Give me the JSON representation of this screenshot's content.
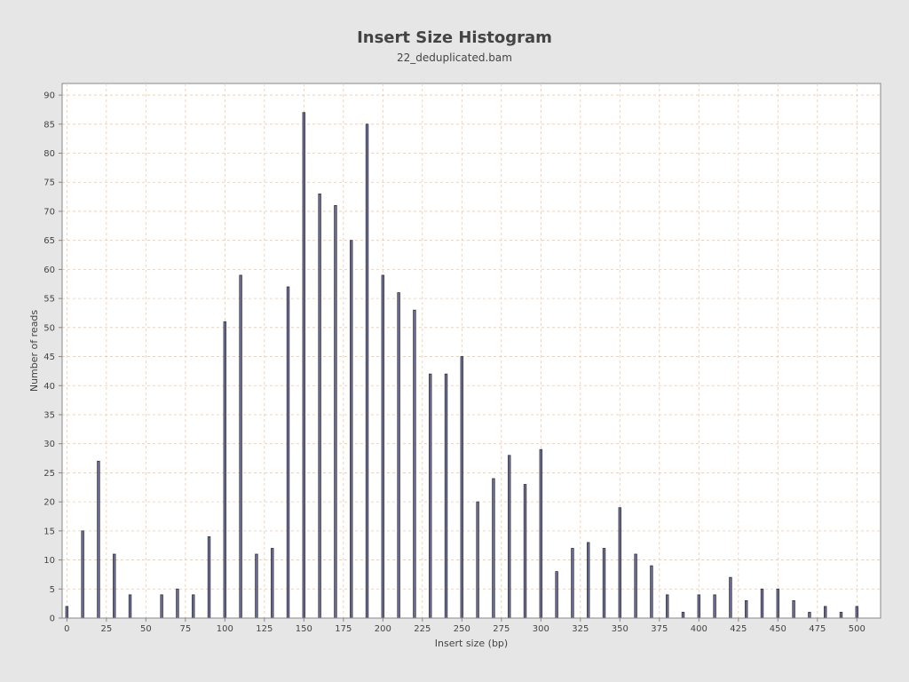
{
  "chart_data": {
    "type": "bar",
    "title": "Insert Size Histogram",
    "subtitle": "22_deduplicated.bam",
    "xlabel": "Insert size (bp)",
    "ylabel": "Number of reads",
    "xlim": [
      -3,
      515
    ],
    "ylim": [
      0,
      92
    ],
    "x_ticks": [
      0,
      25,
      50,
      75,
      100,
      125,
      150,
      175,
      200,
      225,
      250,
      275,
      300,
      325,
      350,
      375,
      400,
      425,
      450,
      475,
      500
    ],
    "y_ticks": [
      0,
      5,
      10,
      15,
      20,
      25,
      30,
      35,
      40,
      45,
      50,
      55,
      60,
      65,
      70,
      75,
      80,
      85,
      90
    ],
    "grid": true,
    "colors": {
      "background": "#e6e6e6",
      "plot_area": "#ffffff",
      "grid": "#f0c8a8",
      "bar_fill": "#6f6f9f",
      "bar_stroke": "#333333",
      "axis": "#888888",
      "text": "#444444"
    },
    "series": [
      {
        "name": "Insert size",
        "x": [
          0,
          10,
          20,
          30,
          40,
          60,
          70,
          80,
          90,
          100,
          110,
          120,
          130,
          140,
          150,
          160,
          170,
          180,
          190,
          200,
          210,
          220,
          230,
          240,
          250,
          260,
          270,
          280,
          290,
          300,
          310,
          320,
          330,
          340,
          350,
          360,
          370,
          380,
          390,
          400,
          410,
          420,
          430,
          440,
          450,
          460,
          470,
          480,
          490,
          500
        ],
        "values": [
          2,
          15,
          27,
          11,
          4,
          4,
          5,
          4,
          14,
          51,
          59,
          11,
          12,
          57,
          87,
          73,
          71,
          65,
          85,
          59,
          56,
          53,
          42,
          42,
          45,
          20,
          24,
          28,
          23,
          29,
          8,
          12,
          13,
          12,
          19,
          11,
          9,
          4,
          1,
          4,
          4,
          7,
          3,
          5,
          5,
          3,
          1,
          2,
          1,
          2
        ]
      }
    ]
  }
}
